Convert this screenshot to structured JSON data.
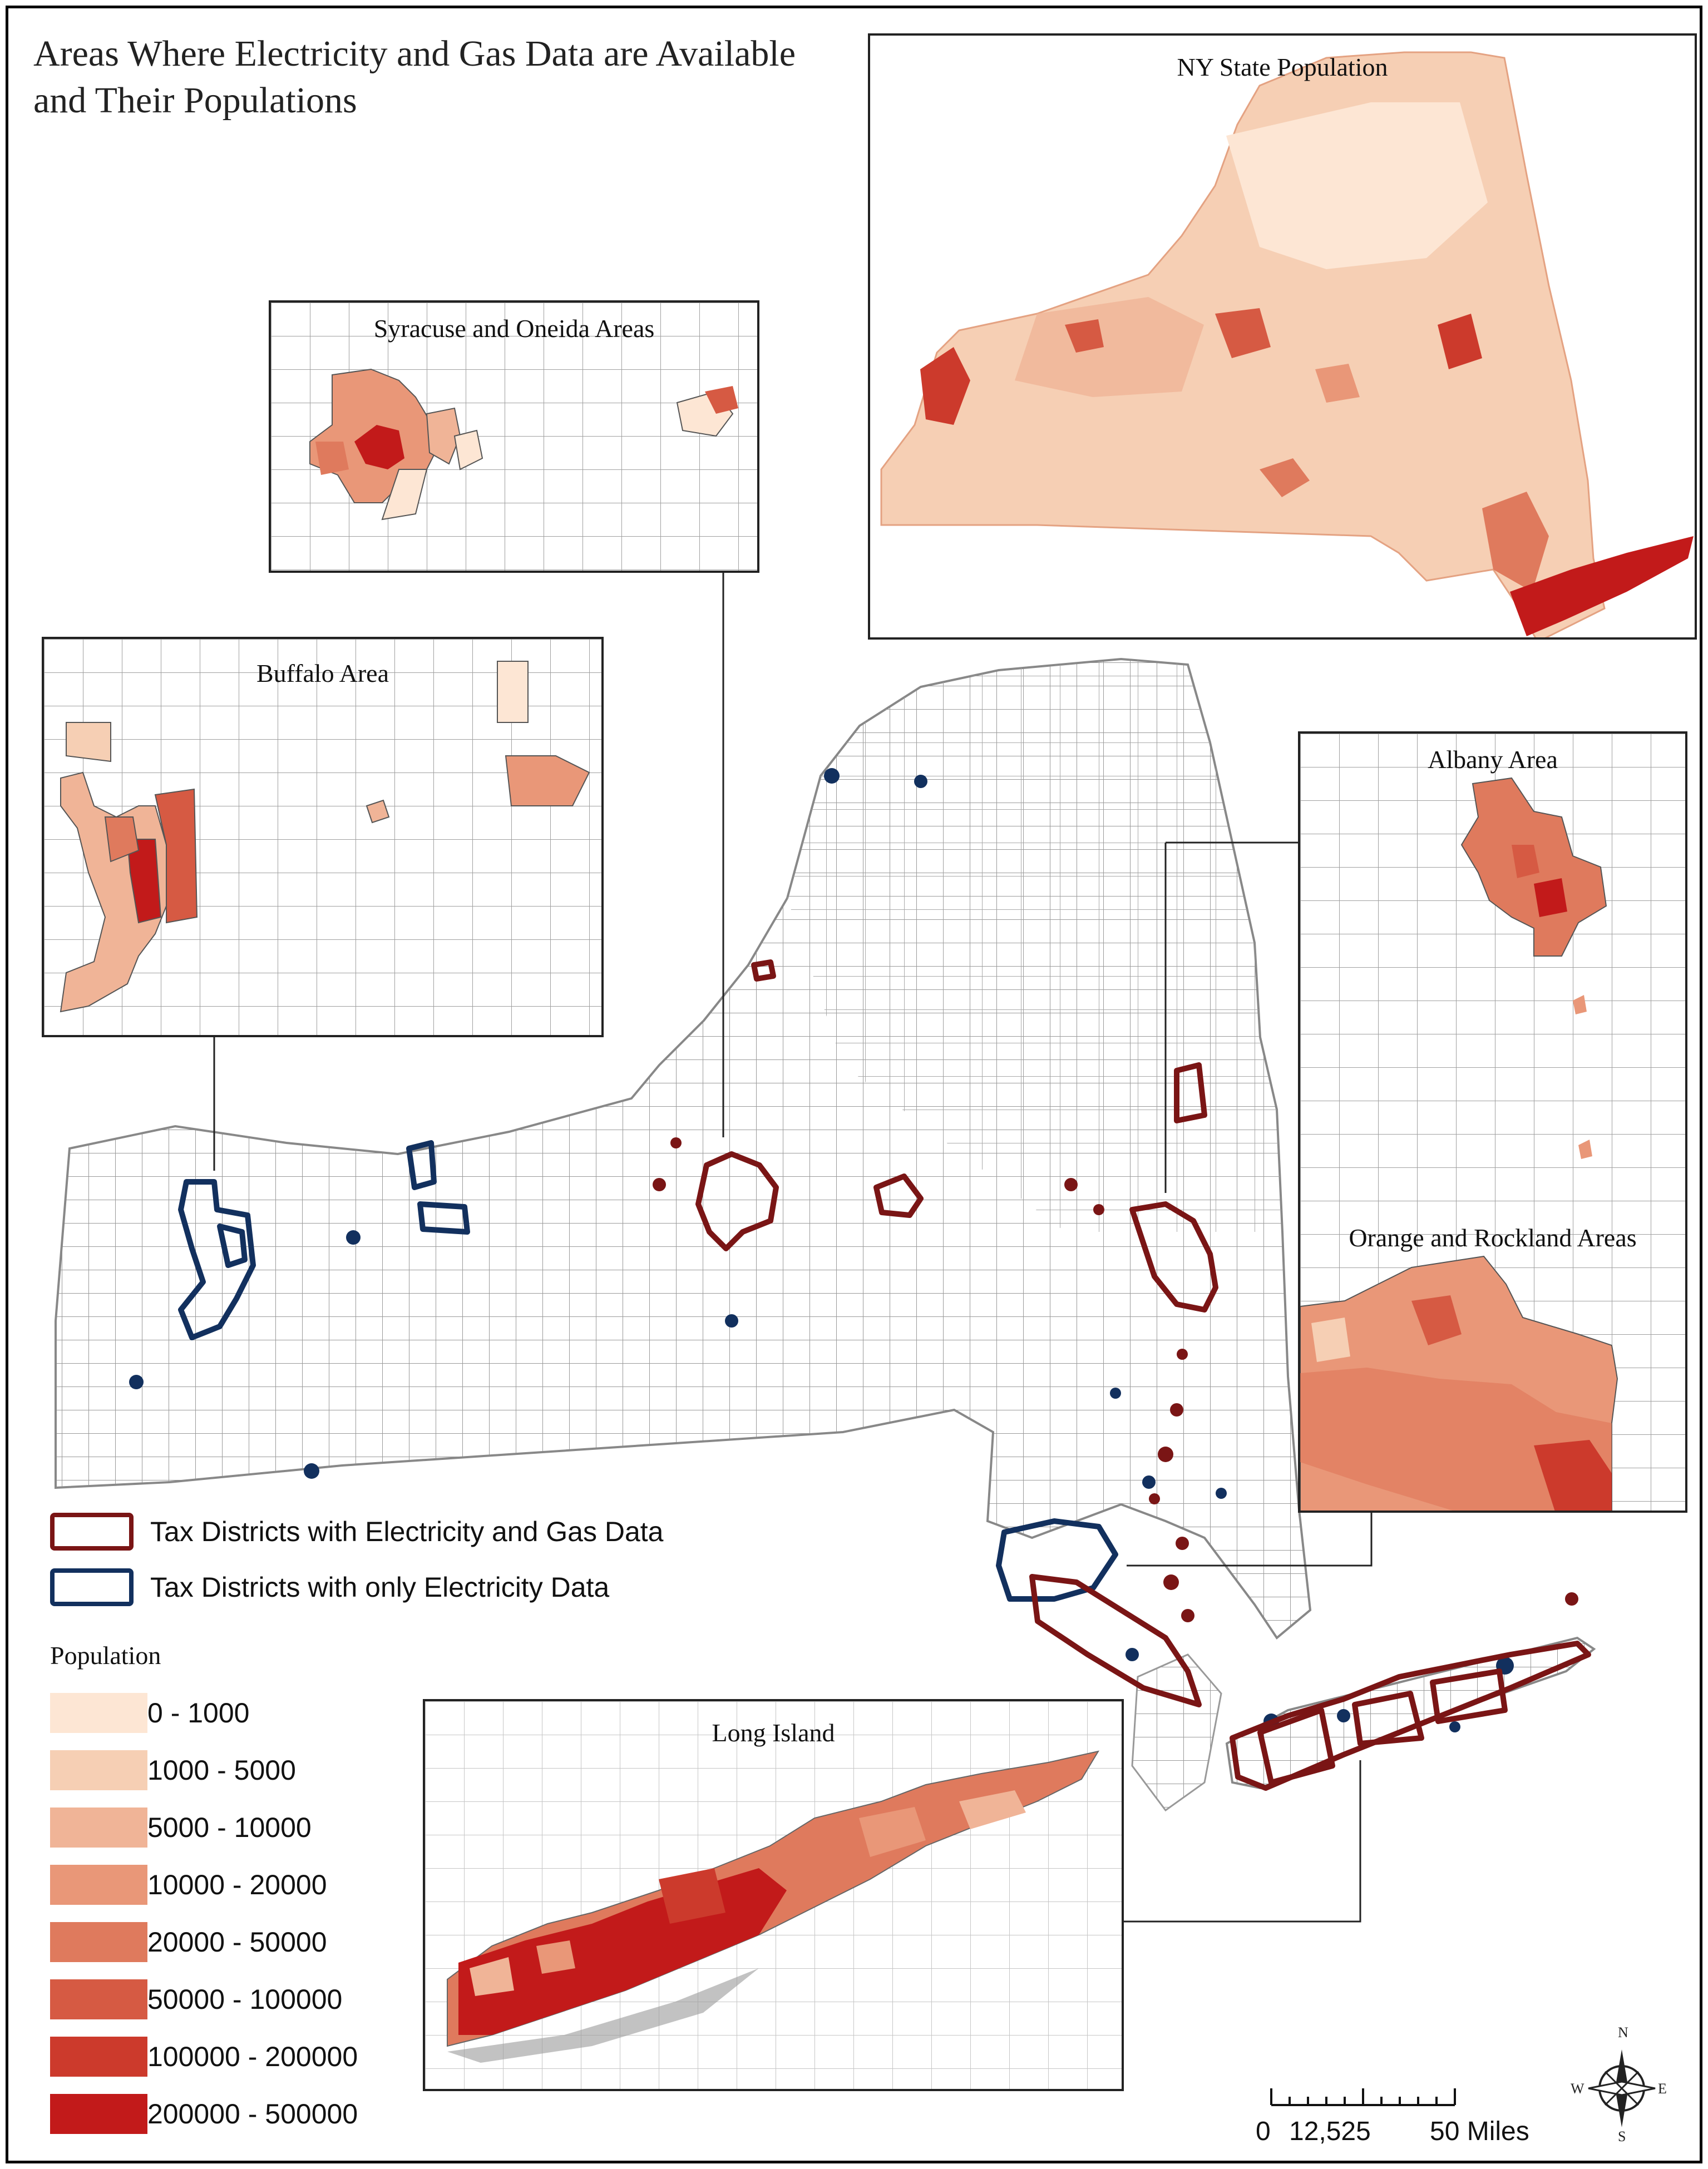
{
  "title_line1": "Areas Where Electricity and Gas Data are Available",
  "title_line2": "and Their Populations",
  "insets": {
    "ny_state": "NY State Population",
    "syracuse": "Syracuse and Oneida Areas",
    "buffalo": "Buffalo Area",
    "albany": "Albany Area",
    "orange_rockland": "Orange and Rockland Areas",
    "long_island": "Long Island"
  },
  "boundary_legend": [
    {
      "label": "Tax Districts with Electricity and Gas Data",
      "color": "#7a1515"
    },
    {
      "label": "Tax Districts with only Electricity Data",
      "color": "#12305e"
    }
  ],
  "population_legend": {
    "heading": "Population",
    "classes": [
      {
        "label": "0 - 1000",
        "color": "#fde6d4"
      },
      {
        "label": "1000 - 5000",
        "color": "#f6cfb4"
      },
      {
        "label": "5000 - 10000",
        "color": "#f0b497"
      },
      {
        "label": "10000 - 20000",
        "color": "#e99778"
      },
      {
        "label": "20000 - 50000",
        "color": "#df7a5d"
      },
      {
        "label": "50000 - 100000",
        "color": "#d65a43"
      },
      {
        "label": "100000 - 200000",
        "color": "#cc3a2c"
      },
      {
        "label": "200000 - 500000",
        "color": "#c21a1a"
      }
    ]
  },
  "scale_bar": {
    "zero": "0",
    "mid": "12,525",
    "end": "50 Miles"
  },
  "compass": {
    "n": "N",
    "s": "S",
    "e": "E",
    "w": "W"
  },
  "colors": {
    "electric_gas": "#7a1515",
    "electric_only": "#12305e",
    "county_lines": "#9a9a9a"
  }
}
